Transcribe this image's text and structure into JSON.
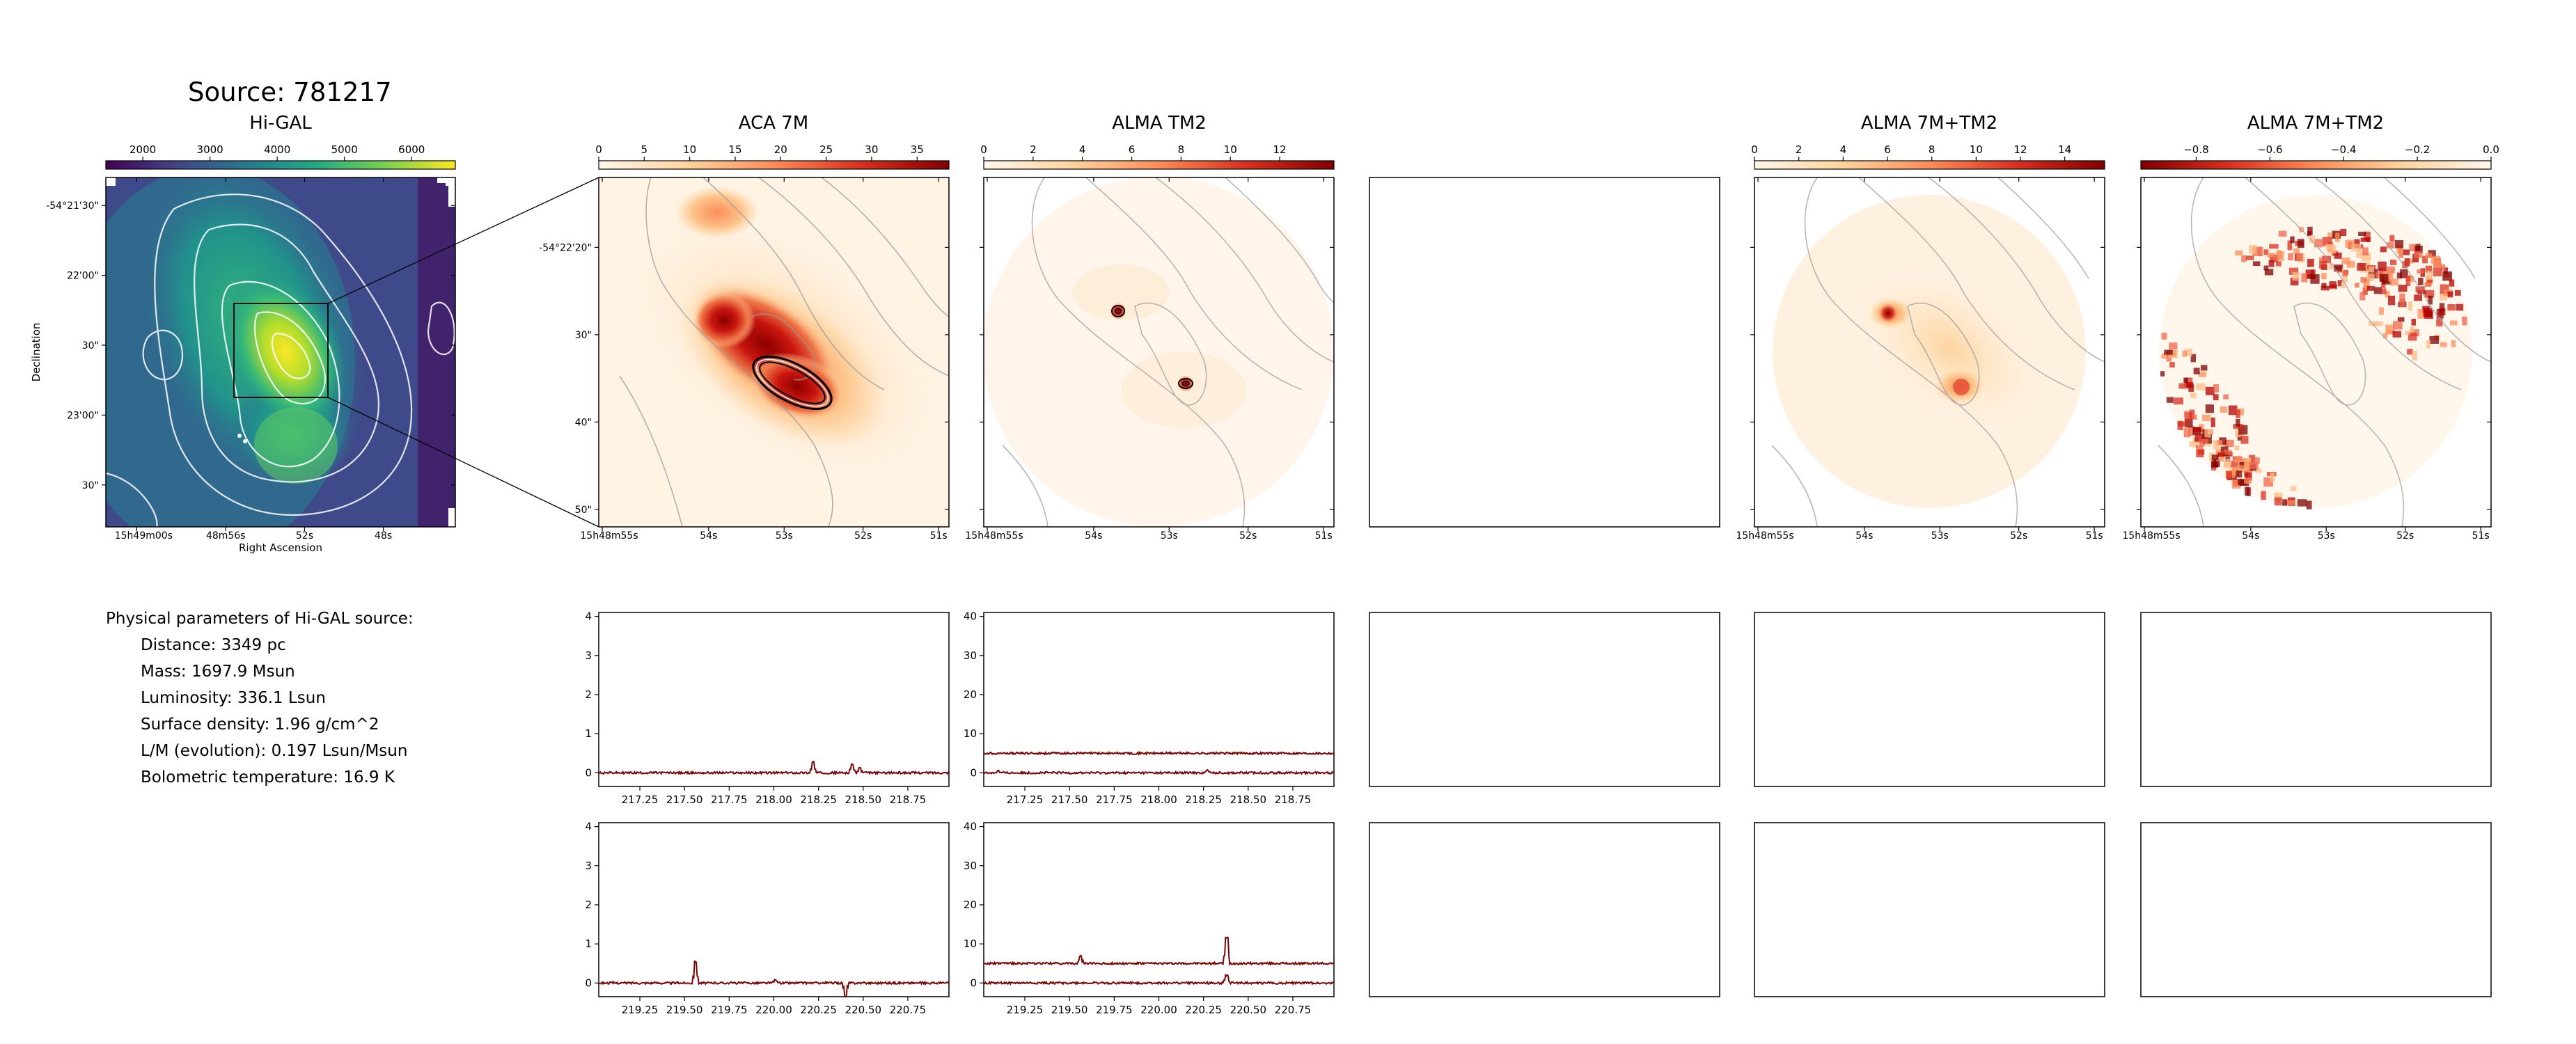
{
  "source_title": "Source: 781217",
  "params": {
    "heading": "Physical parameters of Hi-GAL source:",
    "items": [
      "Distance: 3349 pc",
      "Mass: 1697.9 Msun",
      "Luminosity: 336.1 Lsun",
      "Surface density: 1.96 g/cm^2",
      "L/M (evolution): 0.197 Lsun/Msun",
      "Bolometric temperature: 16.9 K"
    ]
  },
  "colors": {
    "viridis": [
      "#440154",
      "#414487",
      "#2a788e",
      "#22a884",
      "#7ad151",
      "#fde725"
    ],
    "orrd": [
      "#fff7ec",
      "#fdd49e",
      "#fc8d59",
      "#d7301f",
      "#7f0000"
    ],
    "spectrum_line": "#8b0000"
  },
  "chart_data": [
    {
      "type": "heatmap",
      "title": "Hi-GAL",
      "colormap": "viridis",
      "colorbar_ticks": [
        "2000",
        "3000",
        "4000",
        "5000",
        "6000"
      ],
      "colorbar_range": [
        1450,
        6650
      ],
      "xlabel": "Right Ascension",
      "ylabel": "Declination",
      "x_ticks": [
        "15h49m00s",
        "48m56s",
        "52s",
        "48s"
      ],
      "y_ticks": [
        "-54°21'30\"",
        "22'00\"",
        "30\"",
        "23'00\"",
        "30\""
      ],
      "contours": "white",
      "zoom_box": true
    },
    {
      "type": "heatmap",
      "title": "ACA 7M",
      "colormap": "OrRd",
      "colorbar_ticks": [
        "0",
        "5",
        "10",
        "15",
        "20",
        "25",
        "30",
        "35"
      ],
      "colorbar_range": [
        0,
        38.5
      ],
      "x_ticks": [
        "15h48m55s",
        "54s",
        "53s",
        "52s",
        "51s"
      ],
      "y_ticks": [
        "-54°22'20\"",
        "30\"",
        "40\"",
        "50\""
      ]
    },
    {
      "type": "heatmap",
      "title": "ALMA TM2",
      "colormap": "OrRd",
      "colorbar_ticks": [
        "0",
        "2",
        "4",
        "6",
        "8",
        "10",
        "12"
      ],
      "colorbar_range": [
        0,
        14.2
      ],
      "x_ticks": [
        "15h48m55s",
        "54s",
        "53s",
        "52s",
        "51s"
      ]
    },
    {
      "type": "heatmap",
      "title": "ALMA 7M+TM2",
      "colormap": "OrRd",
      "colorbar_ticks": [
        "0",
        "2",
        "4",
        "6",
        "8",
        "10",
        "12",
        "14"
      ],
      "colorbar_range": [
        0,
        15.8
      ],
      "x_ticks": [
        "15h48m55s",
        "54s",
        "53s",
        "52s",
        "51s"
      ]
    },
    {
      "type": "heatmap",
      "title": "ALMA 7M+TM2",
      "colormap": "OrRd_r",
      "colorbar_ticks": [
        "−0.8",
        "−0.6",
        "−0.4",
        "−0.2",
        "0.0"
      ],
      "colorbar_range": [
        -0.95,
        0.0
      ],
      "x_ticks": [
        "15h48m55s",
        "54s",
        "53s",
        "52s",
        "51s"
      ]
    },
    {
      "type": "line",
      "panel": "spectrum-aca-1",
      "x_ticks": [
        "217.25",
        "217.50",
        "217.75",
        "218.00",
        "218.25",
        "218.50",
        "218.75"
      ],
      "xlim": [
        217.02,
        218.98
      ],
      "y_ticks": [
        "0",
        "1",
        "2",
        "3",
        "4"
      ],
      "ylim": [
        -0.35,
        4.1
      ],
      "series": [
        {
          "offset": 0,
          "peaks": [
            [
              218.22,
              0.28
            ],
            [
              218.44,
              0.22
            ],
            [
              218.48,
              0.12
            ]
          ]
        }
      ]
    },
    {
      "type": "line",
      "panel": "spectrum-tm2-1",
      "x_ticks": [
        "217.25",
        "217.50",
        "217.75",
        "218.00",
        "218.25",
        "218.50",
        "218.75"
      ],
      "xlim": [
        217.02,
        218.98
      ],
      "y_ticks": [
        "0",
        "10",
        "20",
        "30",
        "40"
      ],
      "ylim": [
        -3.5,
        41
      ],
      "series": [
        {
          "offset": 0,
          "peaks": [
            [
              217.1,
              0.5
            ],
            [
              218.27,
              0.6
            ]
          ]
        },
        {
          "offset": 5,
          "peaks": []
        }
      ]
    },
    {
      "type": "line",
      "panel": "spectrum-aca-2",
      "x_ticks": [
        "219.25",
        "219.50",
        "219.75",
        "220.00",
        "220.25",
        "220.50",
        "220.75"
      ],
      "xlim": [
        219.02,
        220.98
      ],
      "y_ticks": [
        "0",
        "1",
        "2",
        "3",
        "4"
      ],
      "ylim": [
        -0.35,
        4.1
      ],
      "series": [
        {
          "offset": 0,
          "peaks": [
            [
              219.56,
              0.55
            ],
            [
              220.4,
              -0.35
            ],
            [
              220.01,
              0.08
            ]
          ]
        }
      ]
    },
    {
      "type": "line",
      "panel": "spectrum-tm2-2",
      "x_ticks": [
        "219.25",
        "219.50",
        "219.75",
        "220.00",
        "220.25",
        "220.50",
        "220.75"
      ],
      "xlim": [
        219.02,
        220.98
      ],
      "y_ticks": [
        "0",
        "10",
        "20",
        "30",
        "40"
      ],
      "ylim": [
        -3.5,
        41
      ],
      "series": [
        {
          "offset": 0,
          "peaks": [
            [
              220.38,
              1.8
            ]
          ]
        },
        {
          "offset": 5,
          "peaks": [
            [
              219.56,
              1.8
            ],
            [
              220.38,
              6.5
            ]
          ]
        }
      ]
    }
  ]
}
